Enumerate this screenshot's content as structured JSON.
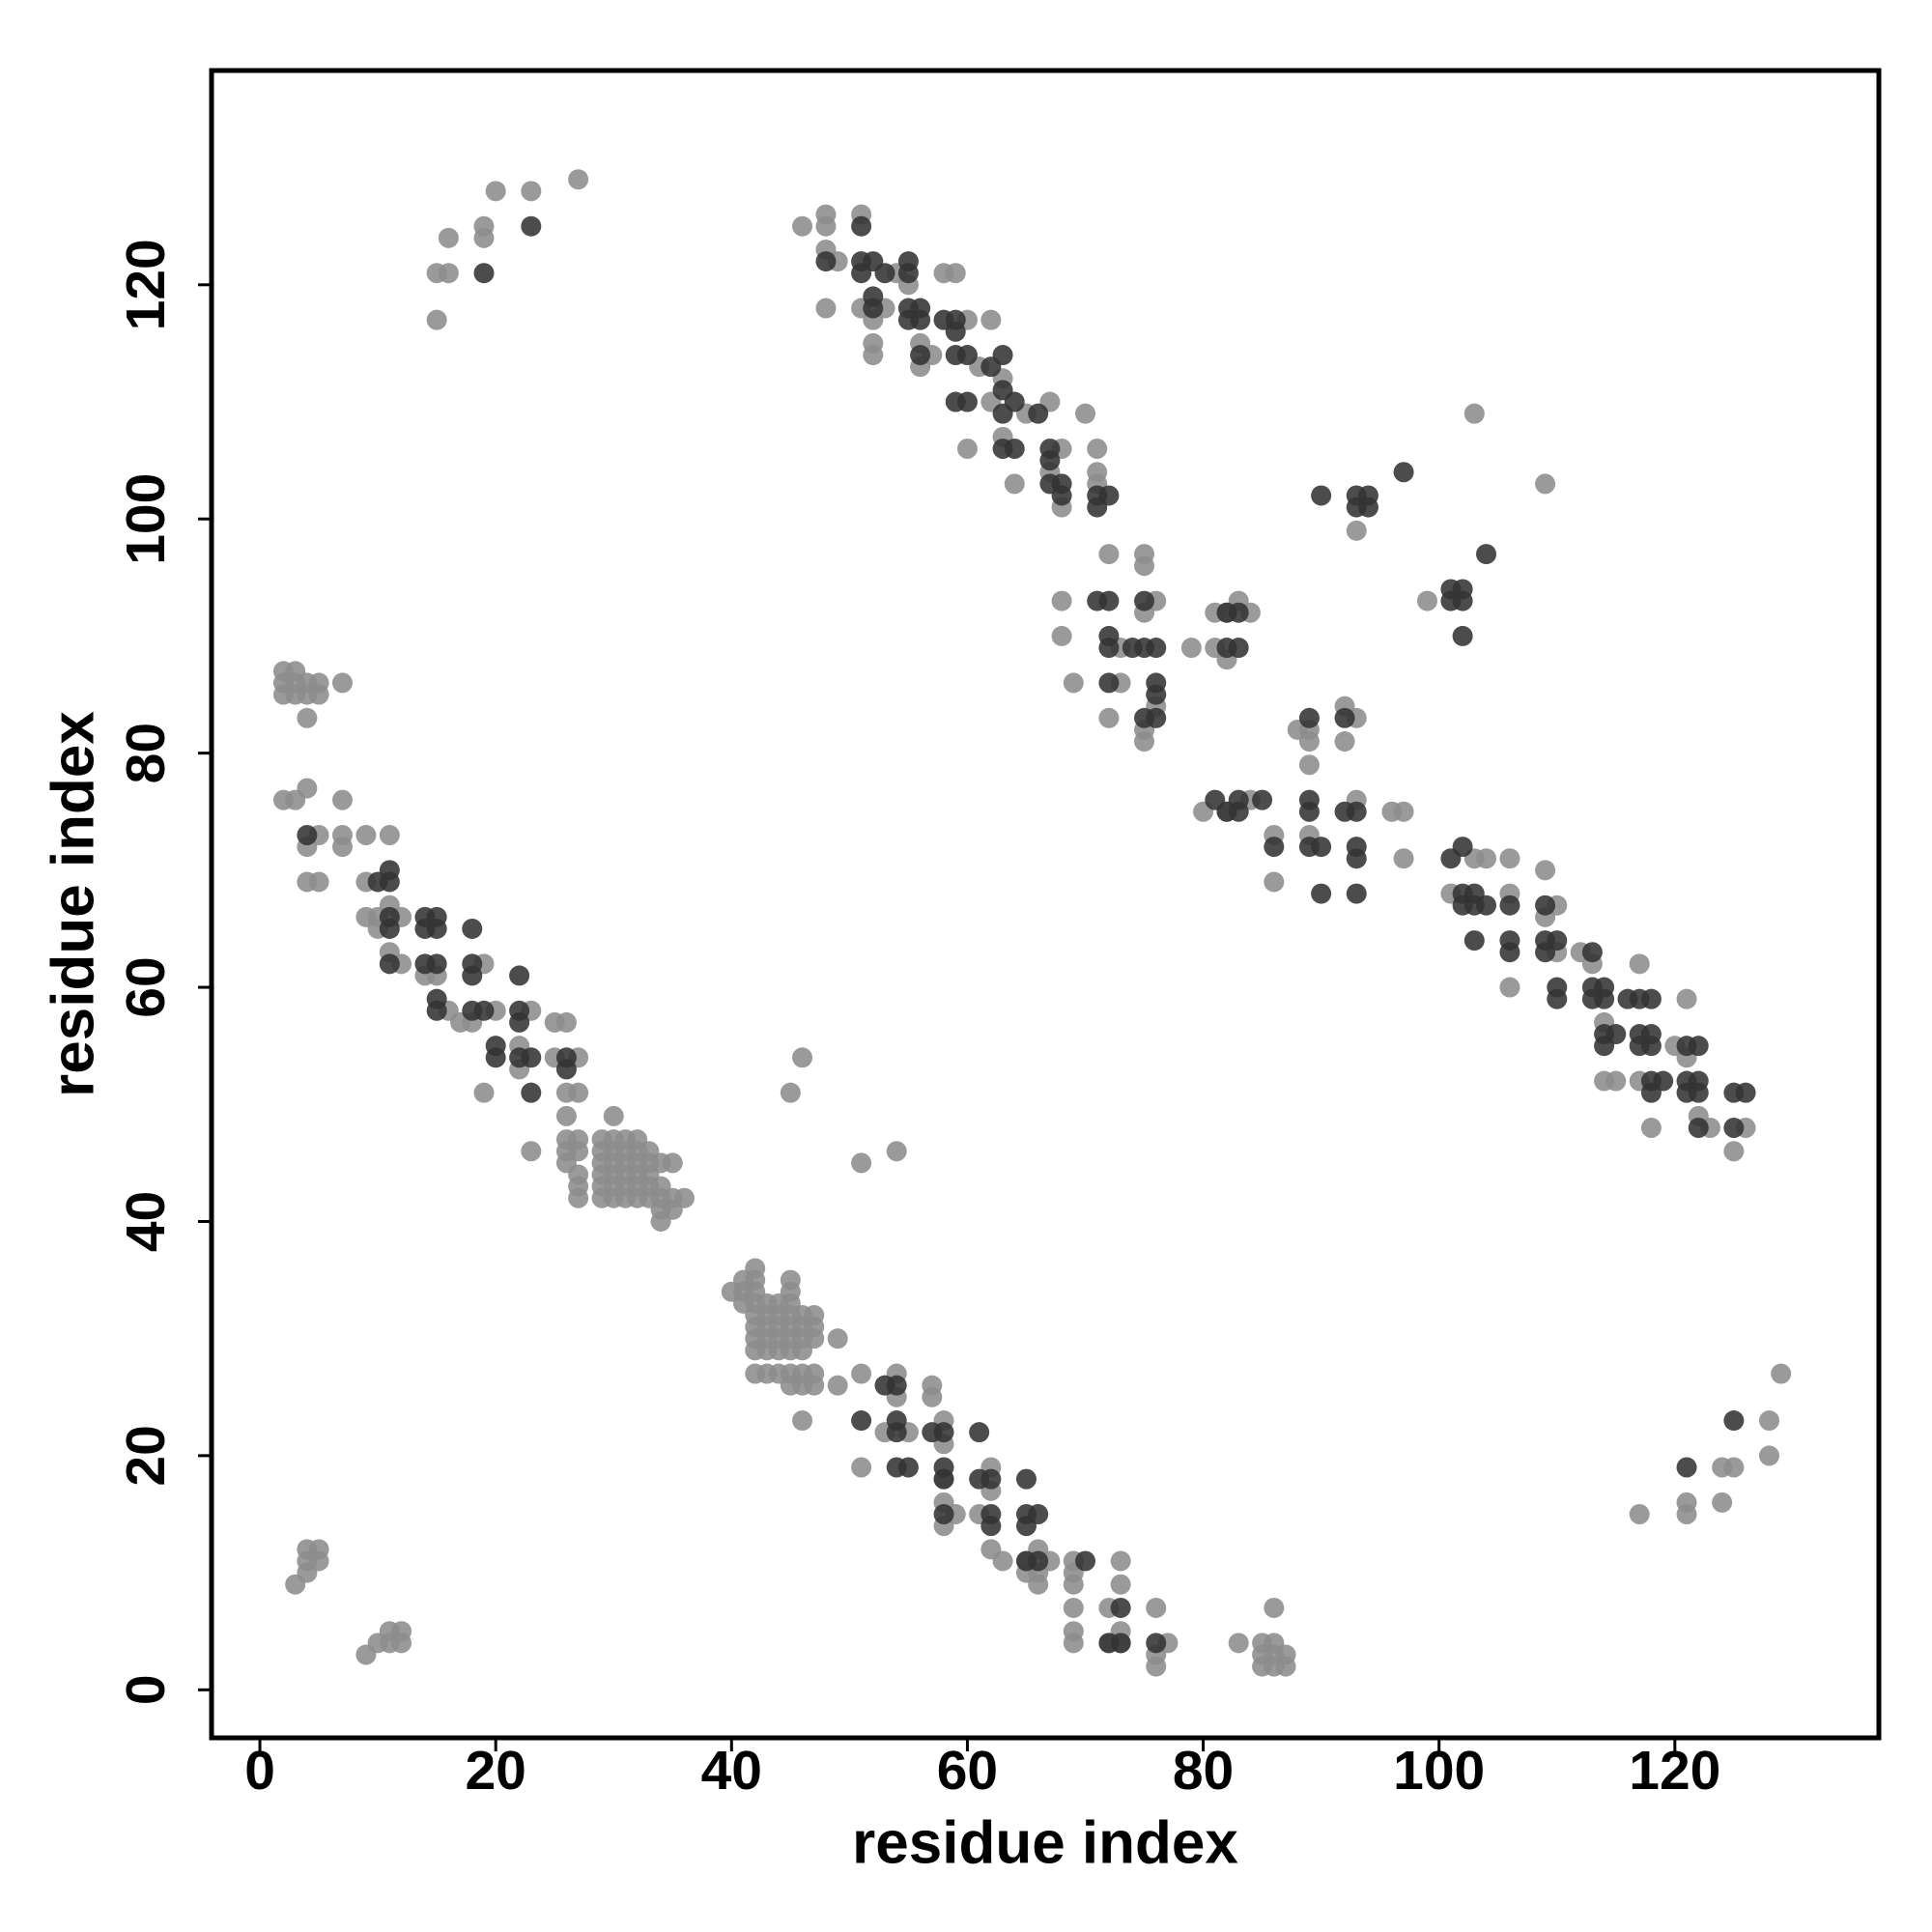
{
  "chart_data": {
    "type": "scatter",
    "xlabel": "residue index",
    "ylabel": "residue index",
    "xlim": [
      -4.1,
      137.3
    ],
    "ylim": [
      -4.1,
      138.3
    ],
    "xticks": [
      0,
      20,
      40,
      60,
      80,
      100,
      120
    ],
    "yticks": [
      0,
      20,
      40,
      60,
      80,
      100,
      120
    ],
    "grid": false,
    "series": [
      {
        "color": "#8c8c8c",
        "x": [
          15,
          15,
          16,
          16,
          19,
          19,
          20,
          23,
          27
        ],
        "y": [
          117,
          121,
          121,
          124,
          124,
          125,
          128,
          128,
          129
        ]
      },
      {
        "color": "#8c8c8c",
        "x": [
          46,
          48,
          48,
          48,
          48,
          49,
          51,
          51,
          52,
          52,
          52,
          53,
          54,
          55,
          56,
          56,
          57,
          58,
          59,
          60,
          61,
          62,
          62,
          60,
          63,
          63,
          64,
          65,
          67,
          67,
          68,
          68,
          70,
          71,
          71,
          71,
          72,
          68,
          68,
          69,
          72,
          73,
          73,
          75,
          75,
          75,
          75,
          75,
          76,
          76,
          79,
          81,
          81,
          82,
          82,
          83,
          84
        ],
        "y": [
          125,
          126,
          125,
          123,
          118,
          122,
          126,
          118,
          115,
          114,
          117,
          118,
          121,
          120,
          115,
          113,
          114,
          121,
          121,
          117,
          113,
          117,
          110,
          106,
          112,
          107,
          103,
          109,
          110,
          104,
          106,
          101,
          109,
          106,
          104,
          103,
          97,
          93,
          90,
          86,
          83,
          86,
          89,
          97,
          96,
          92,
          81,
          82,
          84,
          93,
          89,
          89,
          92,
          88,
          92,
          93,
          92
        ]
      },
      {
        "color": "#8c8c8c",
        "x": [
          80,
          82,
          84,
          86,
          86,
          88,
          89,
          89,
          89,
          89,
          92,
          92,
          93,
          93,
          96,
          97,
          97,
          101,
          103,
          104,
          106,
          106,
          106,
          109,
          109,
          110,
          110,
          112,
          113,
          114,
          114,
          115,
          117,
          117,
          118,
          120,
          121,
          121,
          122,
          123,
          125,
          126
        ],
        "y": [
          75,
          75,
          76,
          73,
          69,
          82,
          82,
          79,
          81,
          73,
          84,
          81,
          83,
          76,
          75,
          75,
          71,
          68,
          71,
          71,
          71,
          68,
          60,
          70,
          66,
          67,
          63,
          63,
          62,
          57,
          52,
          52,
          62,
          52,
          48,
          55,
          59,
          54,
          49,
          48,
          46,
          48
        ]
      },
      {
        "color": "#8c8c8c",
        "x": [
          93,
          103,
          99,
          109,
          45,
          46,
          51,
          54
        ],
        "y": [
          99,
          109,
          93,
          103,
          51,
          54,
          45,
          46
        ]
      },
      {
        "color": "#8c8c8c",
        "x": [
          2,
          3,
          2,
          3,
          2,
          3,
          4,
          4,
          5,
          5,
          4,
          7,
          2,
          3,
          4,
          7,
          4,
          4,
          5,
          5,
          7,
          7,
          9,
          9,
          11,
          9,
          10,
          10,
          11,
          11,
          12,
          12,
          14,
          15,
          16,
          17,
          18,
          19,
          19,
          20,
          22,
          22,
          23,
          23,
          25,
          25,
          26,
          26,
          26,
          27,
          27,
          26,
          26,
          26,
          27,
          27,
          27,
          27,
          27
        ],
        "y": [
          87,
          87,
          86,
          86,
          85,
          85,
          86,
          85,
          86,
          85,
          83,
          86,
          76,
          76,
          77,
          76,
          72,
          69,
          69,
          73,
          72,
          73,
          73,
          69,
          73,
          66,
          65,
          66,
          63,
          67,
          66,
          62,
          61,
          61,
          58,
          57,
          57,
          62,
          51,
          58,
          53,
          55,
          58,
          46,
          57,
          54,
          57,
          51,
          49,
          54,
          51,
          47,
          46,
          45,
          47,
          46,
          44,
          43,
          42
        ]
      },
      {
        "color": "#8c8c8c",
        "x": [
          29,
          29,
          29,
          29,
          29,
          29,
          30,
          30,
          30,
          30,
          30,
          30,
          30,
          31,
          31,
          31,
          31,
          31,
          31,
          32,
          32,
          32,
          32,
          32,
          32,
          33,
          33,
          33,
          33,
          33,
          34,
          34,
          34,
          34,
          34,
          35,
          35,
          35,
          36
        ],
        "y": [
          47,
          46,
          45,
          44,
          43,
          42,
          49,
          47,
          46,
          45,
          44,
          43,
          42,
          47,
          46,
          45,
          44,
          43,
          42,
          47,
          46,
          45,
          44,
          43,
          42,
          46,
          45,
          44,
          43,
          42,
          45,
          43,
          42,
          41,
          40,
          45,
          42,
          41,
          42
        ]
      },
      {
        "color": "#8c8c8c",
        "x": [
          40,
          41,
          41,
          41,
          42,
          42,
          42,
          42,
          42,
          42,
          42,
          42,
          42,
          43,
          43,
          43,
          43,
          43,
          43,
          44,
          44,
          44,
          44,
          44,
          44,
          45,
          45,
          45,
          45,
          45,
          45,
          45,
          45,
          45,
          46,
          46,
          46,
          46,
          46,
          46,
          46,
          47,
          47,
          47,
          47,
          47,
          49,
          49
        ],
        "y": [
          34,
          35,
          34,
          33,
          36,
          35,
          34,
          33,
          32,
          31,
          30,
          29,
          27,
          33,
          32,
          31,
          30,
          29,
          27,
          33,
          32,
          31,
          30,
          29,
          27,
          35,
          34,
          33,
          32,
          31,
          30,
          29,
          27,
          26,
          32,
          31,
          30,
          29,
          27,
          26,
          23,
          32,
          31,
          30,
          27,
          26,
          30,
          26
        ]
      },
      {
        "color": "#8c8c8c",
        "x": [
          51,
          51,
          53,
          54,
          54,
          55,
          57,
          57,
          58,
          58,
          58,
          58,
          58,
          59,
          61,
          62,
          62,
          62,
          63,
          65,
          65,
          66,
          66,
          66,
          67,
          69,
          69,
          69,
          69,
          69,
          69,
          72,
          72,
          73,
          73,
          73,
          73,
          76,
          76,
          76,
          77,
          83,
          85,
          85,
          85,
          86,
          86,
          86,
          86,
          87,
          87
        ],
        "y": [
          27,
          19,
          22,
          27,
          25,
          22,
          26,
          25,
          23,
          21,
          18,
          16,
          14,
          15,
          15,
          19,
          17,
          12,
          11,
          11,
          10,
          12,
          10,
          9,
          11,
          11,
          10,
          9,
          7,
          5,
          4,
          7,
          4,
          11,
          9,
          5,
          4,
          7,
          3,
          2,
          4,
          4,
          4,
          3,
          2,
          7,
          4,
          3,
          2,
          3,
          2
        ]
      },
      {
        "color": "#8c8c8c",
        "x": [
          3,
          4,
          5,
          4,
          4,
          5,
          9,
          10,
          11,
          12,
          11,
          12,
          117,
          121,
          121,
          124,
          124,
          125,
          128,
          128,
          129
        ],
        "y": [
          9,
          12,
          12,
          10,
          11,
          11,
          3,
          4,
          5,
          5,
          4,
          4,
          15,
          16,
          15,
          19,
          16,
          19,
          23,
          20,
          27
        ]
      },
      {
        "color": "#333333",
        "x": [
          19,
          23,
          121,
          125,
          90,
          93,
          93,
          94,
          94,
          97,
          101,
          101,
          102,
          102,
          102,
          104
        ],
        "y": [
          121,
          125,
          19,
          23,
          102,
          102,
          101,
          102,
          101,
          104,
          94,
          93,
          94,
          93,
          90,
          97
        ]
      },
      {
        "color": "#333333",
        "x": [
          48,
          51,
          51,
          52,
          51,
          52,
          53,
          52,
          55,
          55,
          55,
          55,
          56,
          56,
          56,
          58,
          59,
          59,
          59,
          60,
          60,
          59,
          62,
          63,
          63,
          63,
          63,
          64,
          64,
          66,
          67,
          67,
          67,
          68,
          68,
          71,
          72,
          71,
          71,
          72,
          72,
          72,
          72,
          74,
          75,
          75,
          76,
          76,
          76,
          76,
          75,
          82,
          83,
          83,
          82
        ],
        "y": [
          122,
          125,
          122,
          122,
          121,
          119,
          121,
          118,
          122,
          121,
          117,
          118,
          118,
          117,
          114,
          117,
          117,
          116,
          114,
          114,
          110,
          110,
          113,
          114,
          111,
          109,
          106,
          110,
          106,
          109,
          106,
          105,
          103,
          103,
          102,
          102,
          102,
          101,
          93,
          93,
          90,
          89,
          86,
          89,
          93,
          89,
          89,
          86,
          85,
          83,
          83,
          89,
          89,
          92,
          92
        ]
      },
      {
        "color": "#333333",
        "x": [
          81,
          82,
          83,
          83,
          85,
          86,
          89,
          89,
          89,
          89,
          90,
          90,
          92,
          92,
          93,
          93,
          93,
          93,
          101,
          102,
          102,
          102,
          103,
          103,
          103,
          104,
          106,
          106,
          106,
          109,
          109,
          109,
          110,
          110,
          110,
          113,
          113,
          113,
          114,
          114,
          114,
          114,
          115,
          116,
          117,
          117,
          117,
          118,
          118,
          118,
          118,
          118,
          119,
          121,
          121,
          121,
          122,
          122,
          122,
          122,
          125,
          125,
          126
        ],
        "y": [
          76,
          75,
          76,
          75,
          76,
          72,
          83,
          76,
          75,
          72,
          72,
          68,
          83,
          75,
          75,
          72,
          71,
          68,
          71,
          72,
          68,
          67,
          68,
          67,
          64,
          67,
          67,
          64,
          63,
          67,
          64,
          63,
          64,
          60,
          59,
          60,
          59,
          63,
          60,
          59,
          56,
          55,
          56,
          59,
          59,
          56,
          55,
          59,
          56,
          55,
          52,
          51,
          52,
          55,
          52,
          51,
          55,
          52,
          51,
          48,
          51,
          48,
          51
        ]
      },
      {
        "color": "#333333",
        "x": [
          4,
          10,
          11,
          11,
          11,
          11,
          11,
          14,
          14,
          14,
          15,
          15,
          15,
          15,
          15,
          18,
          18,
          18,
          18,
          19,
          20,
          20,
          22,
          22,
          22,
          22,
          23,
          23,
          26,
          26
        ],
        "y": [
          73,
          69,
          70,
          69,
          66,
          65,
          62,
          66,
          65,
          62,
          62,
          66,
          65,
          59,
          58,
          65,
          62,
          61,
          58,
          58,
          55,
          54,
          61,
          58,
          57,
          54,
          54,
          51,
          54,
          53
        ]
      },
      {
        "color": "#333333",
        "x": [
          51,
          53,
          54,
          54,
          54,
          54,
          55,
          57,
          58,
          58,
          58,
          58,
          61,
          61,
          62,
          62,
          62,
          65,
          65,
          65,
          66,
          65,
          66,
          70,
          72,
          73,
          73,
          76
        ],
        "y": [
          23,
          26,
          26,
          23,
          22,
          19,
          19,
          22,
          22,
          19,
          18,
          15,
          22,
          18,
          18,
          15,
          14,
          18,
          15,
          14,
          15,
          11,
          11,
          11,
          4,
          4,
          7,
          4
        ]
      }
    ]
  }
}
